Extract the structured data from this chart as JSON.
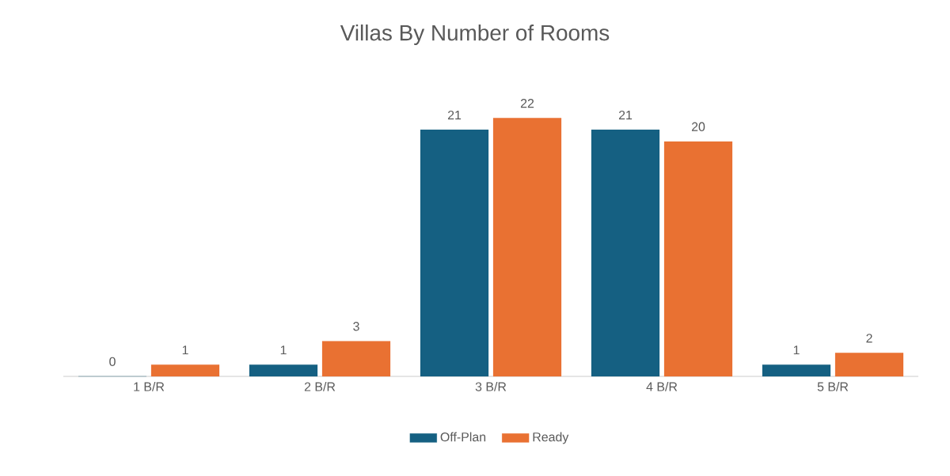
{
  "chart_data": {
    "type": "bar",
    "title": "Villas By Number of Rooms",
    "categories": [
      "1 B/R",
      "2 B/R",
      "3 B/R",
      "4 B/R",
      "5 B/R"
    ],
    "series": [
      {
        "name": "Off-Plan",
        "color": "#156082",
        "values": [
          0,
          1,
          21,
          21,
          1
        ]
      },
      {
        "name": "Ready",
        "color": "#e97132",
        "values": [
          1,
          3,
          22,
          20,
          2
        ]
      }
    ],
    "data_labels": true,
    "legend": "bottom"
  }
}
